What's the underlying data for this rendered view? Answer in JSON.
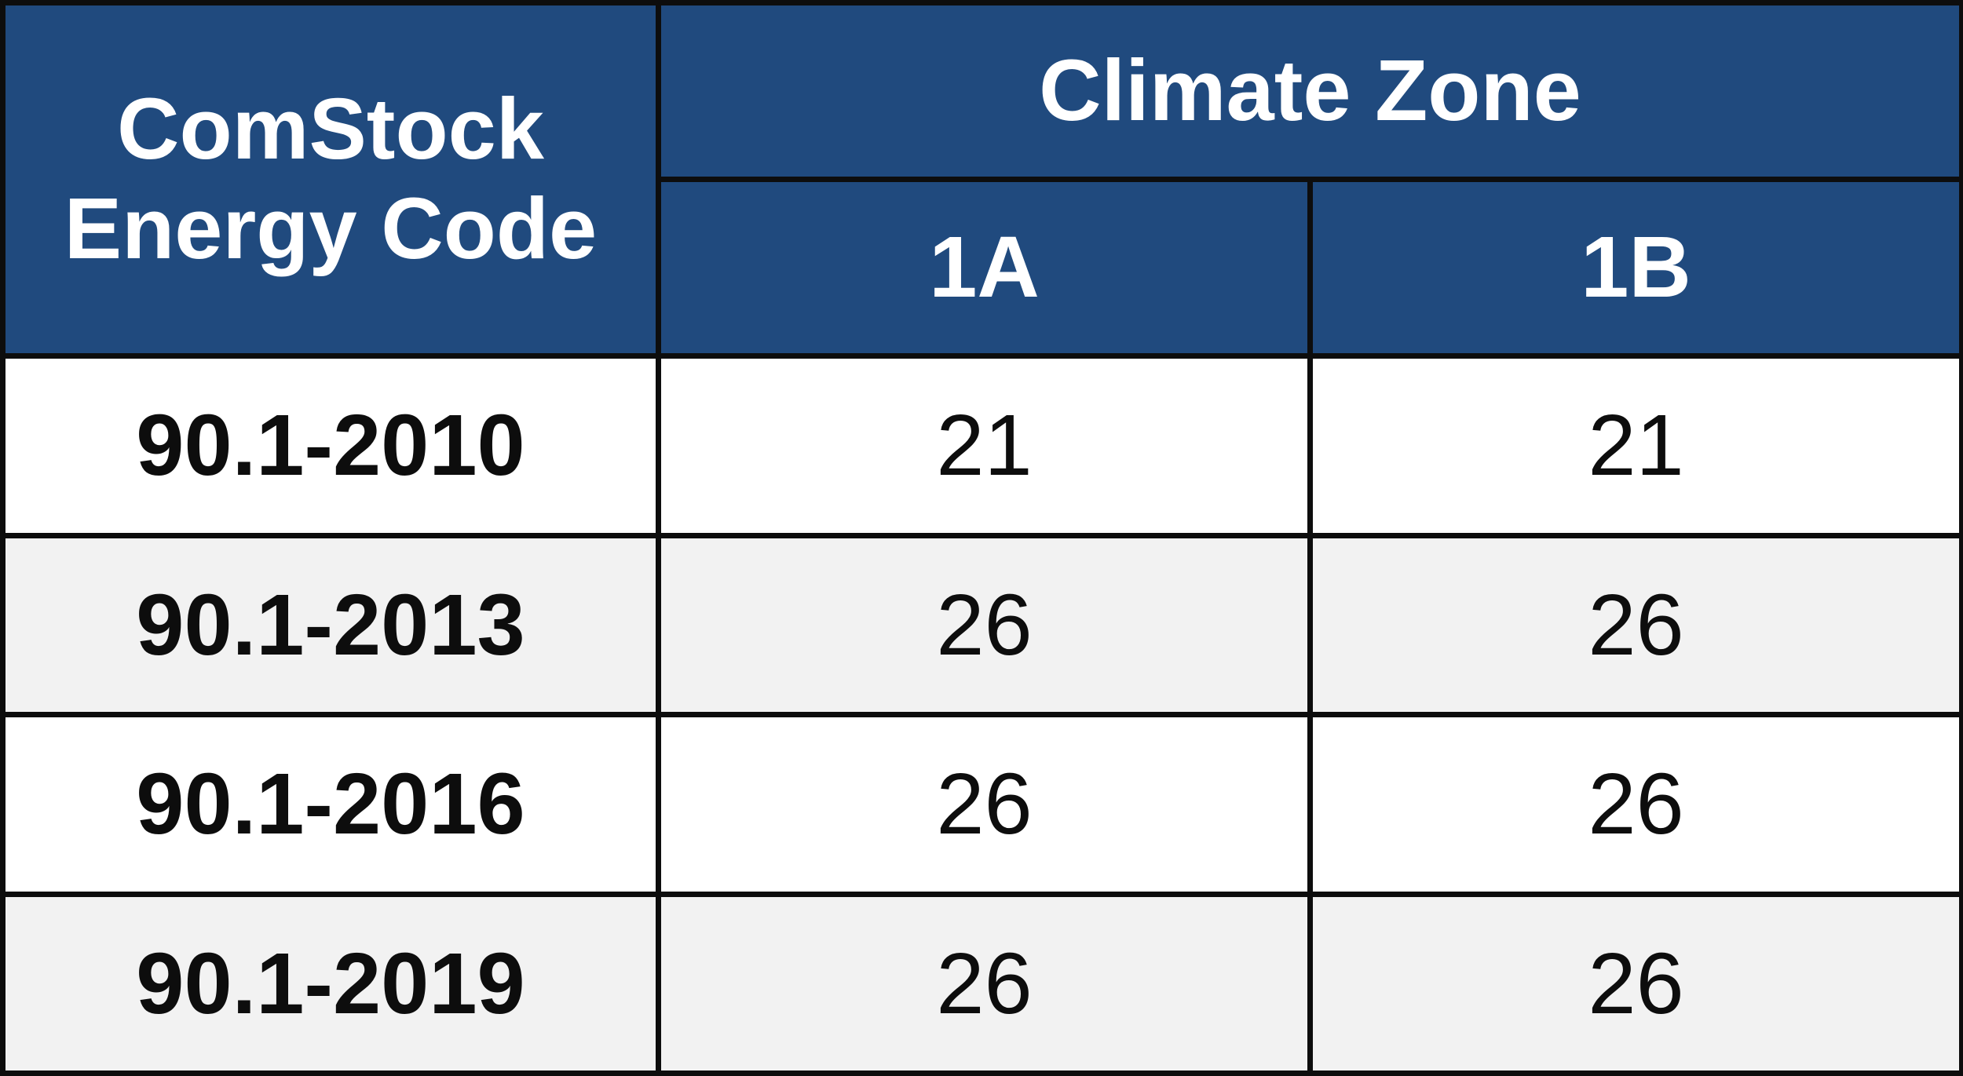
{
  "header": {
    "code_label_line1": "ComStock",
    "code_label_line2": "Energy Code",
    "group_label": "Climate Zone",
    "zones": [
      "1A",
      "1B"
    ]
  },
  "rows": [
    {
      "code": "90.1-2010",
      "values": [
        "21",
        "21"
      ]
    },
    {
      "code": "90.1-2013",
      "values": [
        "26",
        "26"
      ]
    },
    {
      "code": "90.1-2016",
      "values": [
        "26",
        "26"
      ]
    },
    {
      "code": "90.1-2019",
      "values": [
        "26",
        "26"
      ]
    }
  ],
  "colors": {
    "header_bg": "#204a7e",
    "header_text": "#ffffff",
    "border": "#0d0d0d",
    "alt_row_bg": "#f2f2f2"
  }
}
